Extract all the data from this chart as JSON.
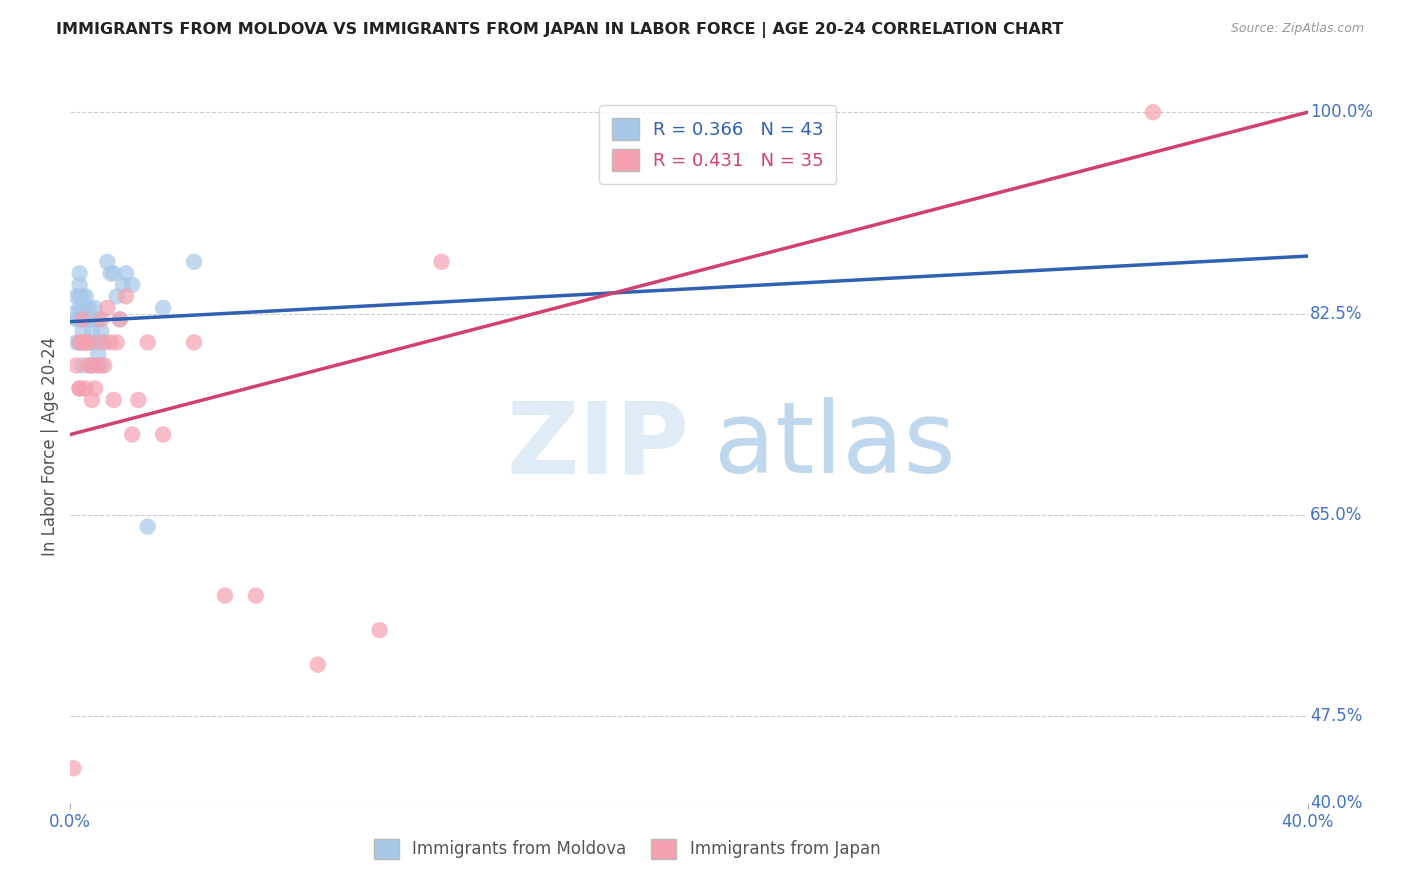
{
  "title": "IMMIGRANTS FROM MOLDOVA VS IMMIGRANTS FROM JAPAN IN LABOR FORCE | AGE 20-24 CORRELATION CHART",
  "source": "Source: ZipAtlas.com",
  "ylabel": "In Labor Force | Age 20-24",
  "moldova_R": 0.366,
  "moldova_N": 43,
  "japan_R": 0.431,
  "japan_N": 35,
  "moldova_color": "#a8c8e8",
  "japan_color": "#f4a0b0",
  "moldova_line_color": "#3060b0",
  "japan_line_color": "#d04070",
  "legend_moldova": "Immigrants from Moldova",
  "legend_japan": "Immigrants from Japan",
  "background_color": "#ffffff",
  "grid_color": "#cccccc",
  "axis_label_color": "#4472c4",
  "xlim": [
    0.0,
    0.4
  ],
  "ylim": [
    0.4,
    1.02
  ],
  "yticks": [
    1.0,
    0.825,
    0.65,
    0.475,
    0.4
  ],
  "ytick_labels": [
    "100.0%",
    "82.5%",
    "65.0%",
    "47.5%",
    "40.0%"
  ],
  "xtick_labels": [
    "0.0%",
    "40.0%"
  ],
  "moldova_x": [
    0.001,
    0.002,
    0.002,
    0.002,
    0.003,
    0.003,
    0.003,
    0.003,
    0.003,
    0.003,
    0.004,
    0.004,
    0.004,
    0.004,
    0.004,
    0.005,
    0.005,
    0.005,
    0.005,
    0.006,
    0.006,
    0.006,
    0.007,
    0.007,
    0.007,
    0.008,
    0.008,
    0.009,
    0.009,
    0.01,
    0.01,
    0.011,
    0.012,
    0.013,
    0.014,
    0.015,
    0.016,
    0.017,
    0.018,
    0.02,
    0.025,
    0.03,
    0.04
  ],
  "moldova_y": [
    0.825,
    0.84,
    0.82,
    0.8,
    0.86,
    0.85,
    0.84,
    0.83,
    0.82,
    0.8,
    0.84,
    0.83,
    0.82,
    0.81,
    0.78,
    0.84,
    0.83,
    0.82,
    0.8,
    0.83,
    0.82,
    0.8,
    0.82,
    0.81,
    0.78,
    0.83,
    0.8,
    0.82,
    0.79,
    0.81,
    0.78,
    0.8,
    0.87,
    0.86,
    0.86,
    0.84,
    0.82,
    0.85,
    0.86,
    0.85,
    0.64,
    0.83,
    0.87
  ],
  "japan_x": [
    0.001,
    0.002,
    0.003,
    0.003,
    0.003,
    0.004,
    0.004,
    0.005,
    0.005,
    0.006,
    0.006,
    0.007,
    0.007,
    0.008,
    0.009,
    0.01,
    0.01,
    0.011,
    0.012,
    0.013,
    0.014,
    0.015,
    0.016,
    0.018,
    0.02,
    0.022,
    0.025,
    0.03,
    0.04,
    0.05,
    0.06,
    0.08,
    0.1,
    0.12,
    0.35
  ],
  "japan_y": [
    0.43,
    0.78,
    0.76,
    0.8,
    0.76,
    0.8,
    0.82,
    0.8,
    0.76,
    0.78,
    0.8,
    0.75,
    0.78,
    0.76,
    0.78,
    0.82,
    0.8,
    0.78,
    0.83,
    0.8,
    0.75,
    0.8,
    0.82,
    0.84,
    0.72,
    0.75,
    0.8,
    0.72,
    0.8,
    0.58,
    0.58,
    0.52,
    0.55,
    0.87,
    1.0
  ],
  "moldova_trend": [
    0.818,
    0.875
  ],
  "japan_trend": [
    0.72,
    1.0
  ]
}
